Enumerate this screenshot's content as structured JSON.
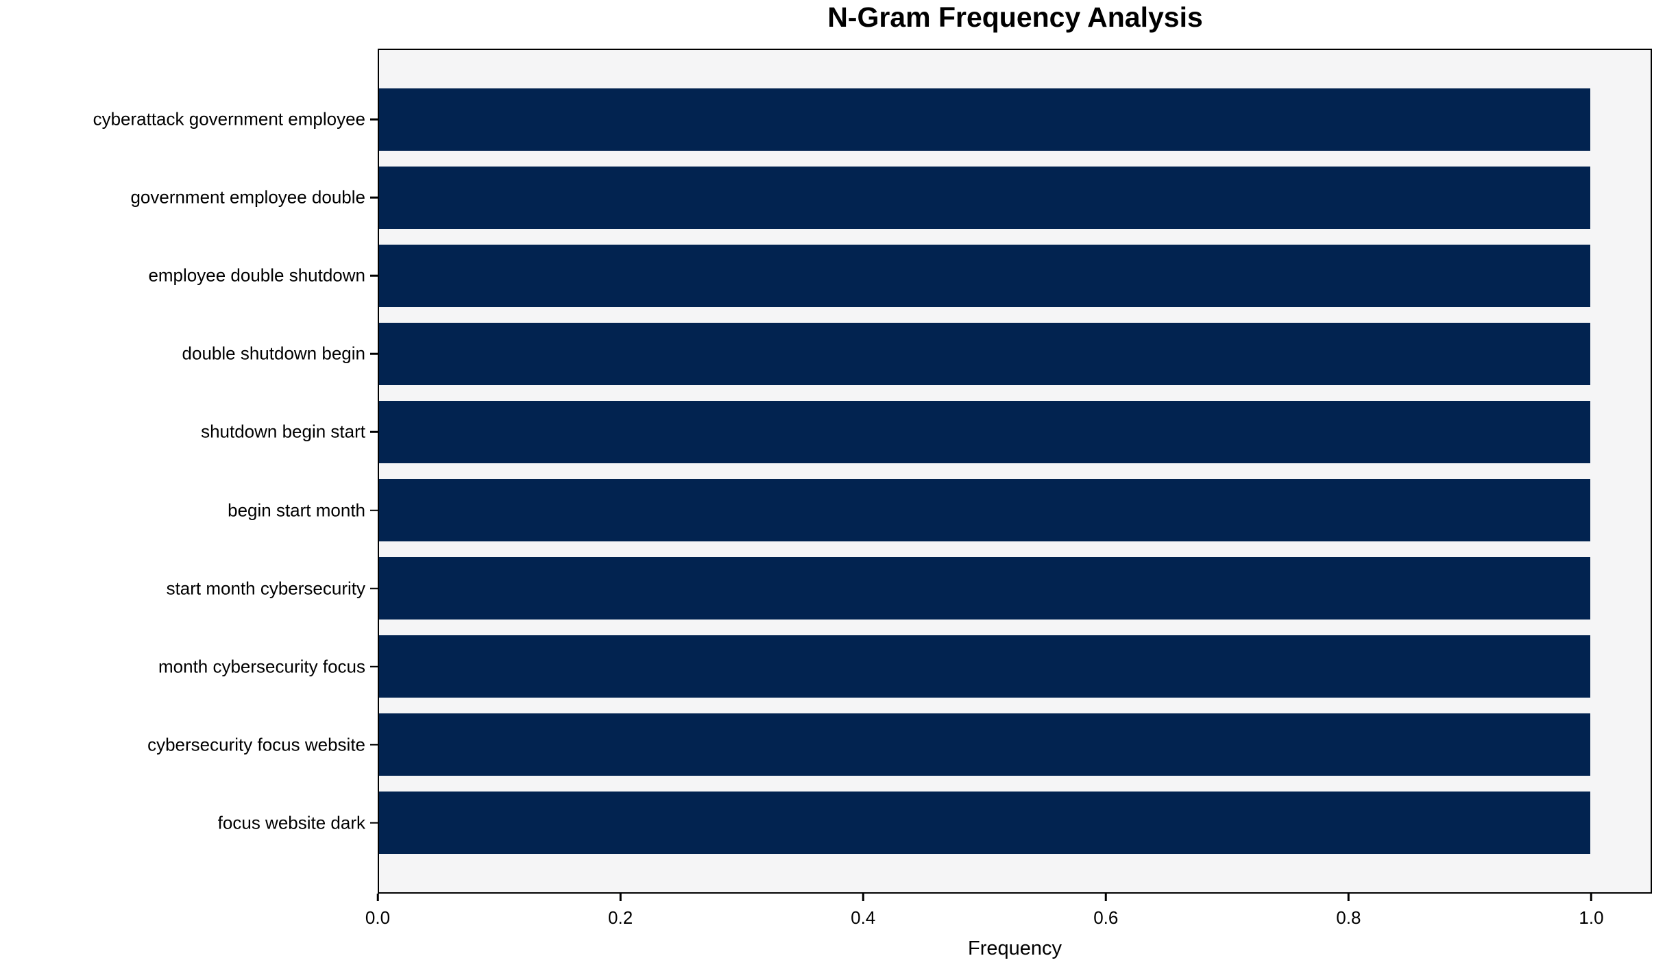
{
  "chart_data": {
    "type": "bar",
    "orientation": "horizontal",
    "title": "N-Gram Frequency Analysis",
    "xlabel": "Frequency",
    "ylabel": "",
    "categories": [
      "cyberattack government employee",
      "government employee double",
      "employee double shutdown",
      "double shutdown begin",
      "shutdown begin start",
      "begin start month",
      "start month cybersecurity",
      "month cybersecurity focus",
      "cybersecurity focus website",
      "focus website dark"
    ],
    "values": [
      1.0,
      1.0,
      1.0,
      1.0,
      1.0,
      1.0,
      1.0,
      1.0,
      1.0,
      1.0
    ],
    "x_ticks": [
      0.0,
      0.2,
      0.4,
      0.6,
      0.8,
      1.0
    ],
    "x_tick_labels": [
      "0.0",
      "0.2",
      "0.4",
      "0.6",
      "0.8",
      "1.0"
    ],
    "xlim": [
      0,
      1.05
    ],
    "bar_height_fraction": 0.8,
    "grid": false,
    "legend": null,
    "colors": {
      "bar": "#022350",
      "plot_background": "#f5f5f6",
      "figure_background": "#ffffff",
      "axis": "#000000",
      "text": "#000000"
    }
  }
}
